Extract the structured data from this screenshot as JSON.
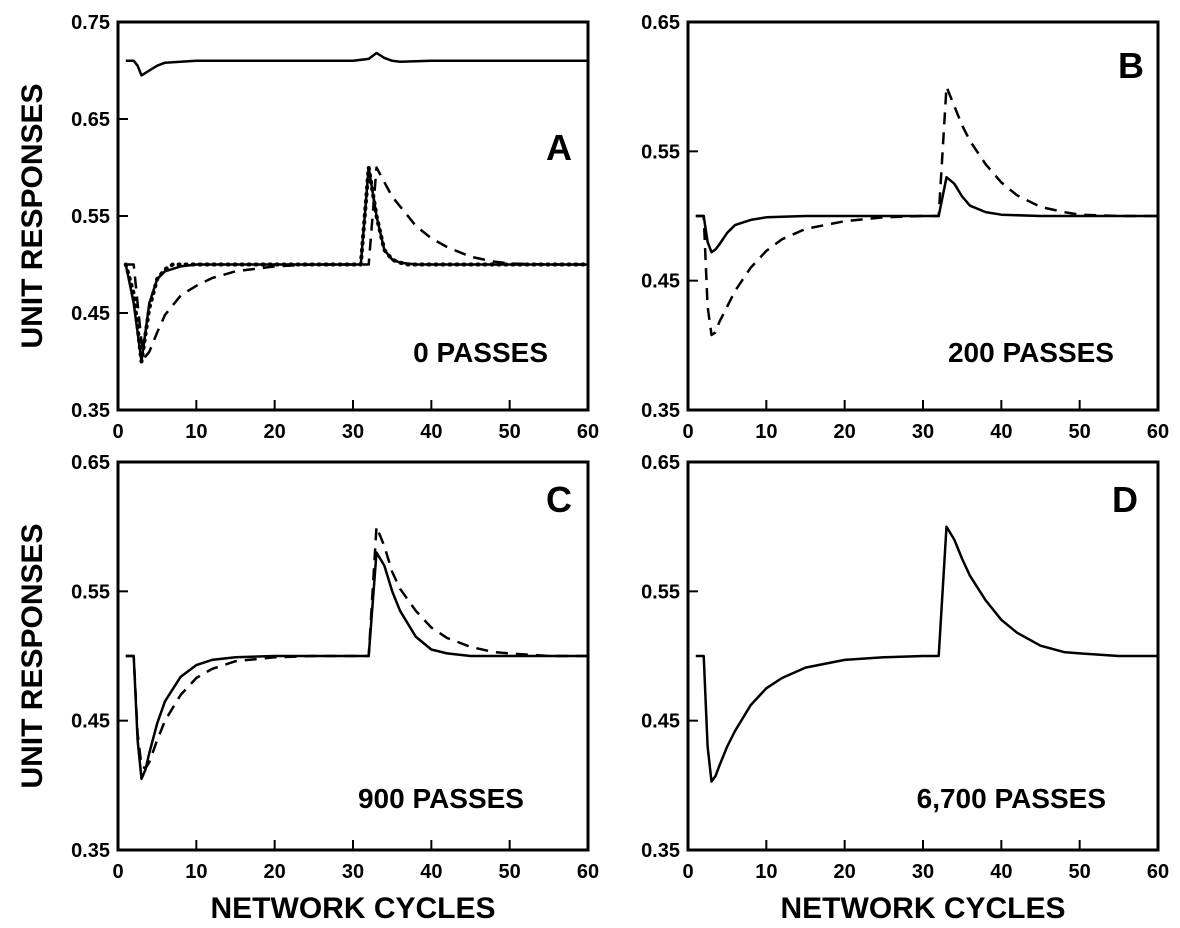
{
  "figure": {
    "ylabel_top": "UNIT RESPONSES",
    "ylabel_bottom": "UNIT RESPONSES",
    "xlabel_left": "NETWORK CYCLES",
    "xlabel_right": "NETWORK CYCLES"
  },
  "chart_data": [
    {
      "type": "line",
      "panel": "A",
      "letter": "A",
      "passes_label": "0 PASSES",
      "xlim": [
        0,
        60
      ],
      "ylim": [
        0.35,
        0.75
      ],
      "xticks": [
        0,
        10,
        20,
        30,
        40,
        50,
        60
      ],
      "xtick_labels": [
        "0",
        "10",
        "20",
        "30",
        "40",
        "50",
        "60"
      ],
      "yticks": [
        0.35,
        0.45,
        0.55,
        0.65,
        0.75
      ],
      "ytick_labels": [
        "0.35",
        "0.45",
        "0.55",
        "0.65",
        "0.75"
      ],
      "series": [
        {
          "style": "solid",
          "x": [
            1,
            2,
            2.5,
            3,
            4,
            5,
            6,
            8,
            10,
            20,
            30,
            32,
            33,
            34,
            35,
            36,
            40,
            50,
            60
          ],
          "y": [
            0.71,
            0.71,
            0.705,
            0.695,
            0.7,
            0.705,
            0.708,
            0.709,
            0.71,
            0.71,
            0.71,
            0.712,
            0.718,
            0.713,
            0.71,
            0.709,
            0.71,
            0.71,
            0.71
          ]
        },
        {
          "style": "solid",
          "x": [
            1,
            2,
            3,
            4,
            5,
            6,
            8,
            10,
            15,
            20,
            30,
            31,
            32,
            33,
            34,
            35,
            36,
            38,
            40,
            50,
            60
          ],
          "y": [
            0.5,
            0.46,
            0.4,
            0.46,
            0.485,
            0.493,
            0.498,
            0.5,
            0.5,
            0.5,
            0.5,
            0.5,
            0.6,
            0.55,
            0.515,
            0.505,
            0.502,
            0.5,
            0.5,
            0.5,
            0.5
          ]
        },
        {
          "style": "dotted",
          "x": [
            1,
            2,
            3,
            4,
            5,
            6,
            7,
            8,
            9,
            10,
            12,
            14,
            16,
            18,
            20,
            22,
            24,
            26,
            28,
            30,
            31,
            32,
            33,
            34,
            35,
            36,
            37,
            38,
            40,
            42,
            44,
            46,
            48,
            50,
            52,
            54,
            56,
            58,
            60
          ],
          "y": [
            0.5,
            0.47,
            0.4,
            0.455,
            0.485,
            0.495,
            0.5,
            0.5,
            0.5,
            0.5,
            0.5,
            0.5,
            0.5,
            0.5,
            0.5,
            0.5,
            0.5,
            0.5,
            0.5,
            0.5,
            0.5,
            0.6,
            0.55,
            0.515,
            0.505,
            0.502,
            0.5,
            0.5,
            0.5,
            0.5,
            0.5,
            0.5,
            0.5,
            0.5,
            0.5,
            0.5,
            0.5,
            0.5,
            0.5
          ]
        },
        {
          "style": "dashed",
          "x": [
            1,
            2,
            3,
            3.5,
            4,
            5,
            6,
            8,
            10,
            12,
            15,
            20,
            25,
            30,
            32,
            33,
            34,
            35,
            36,
            38,
            40,
            42,
            45,
            48,
            50,
            55,
            60
          ],
          "y": [
            0.5,
            0.5,
            0.42,
            0.405,
            0.41,
            0.43,
            0.448,
            0.468,
            0.478,
            0.486,
            0.493,
            0.498,
            0.5,
            0.5,
            0.5,
            0.6,
            0.585,
            0.57,
            0.56,
            0.54,
            0.527,
            0.518,
            0.508,
            0.503,
            0.501,
            0.5,
            0.5
          ]
        }
      ]
    },
    {
      "type": "line",
      "panel": "B",
      "letter": "B",
      "passes_label": "200 PASSES",
      "xlim": [
        0,
        60
      ],
      "ylim": [
        0.35,
        0.65
      ],
      "xticks": [
        0,
        10,
        20,
        30,
        40,
        50,
        60
      ],
      "xtick_labels": [
        "0",
        "10",
        "20",
        "30",
        "40",
        "50",
        "60"
      ],
      "yticks": [
        0.35,
        0.45,
        0.55,
        0.65
      ],
      "ytick_labels": [
        "0.35",
        "0.45",
        "0.55",
        "0.65"
      ],
      "series": [
        {
          "style": "solid",
          "x": [
            1,
            2,
            2.5,
            3,
            3.5,
            4,
            5,
            6,
            8,
            10,
            15,
            20,
            30,
            32,
            33,
            34,
            35,
            36,
            38,
            40,
            45,
            50,
            60
          ],
          "y": [
            0.5,
            0.5,
            0.48,
            0.472,
            0.474,
            0.478,
            0.487,
            0.493,
            0.497,
            0.499,
            0.5,
            0.5,
            0.5,
            0.5,
            0.53,
            0.525,
            0.515,
            0.508,
            0.503,
            0.501,
            0.5,
            0.5,
            0.5
          ]
        },
        {
          "style": "dashed",
          "x": [
            1,
            2,
            2.5,
            3,
            3.5,
            4,
            5,
            6,
            8,
            10,
            12,
            15,
            20,
            25,
            30,
            32,
            33,
            34,
            35,
            36,
            38,
            40,
            42,
            45,
            48,
            50,
            55,
            60
          ],
          "y": [
            0.5,
            0.5,
            0.43,
            0.408,
            0.41,
            0.418,
            0.43,
            0.442,
            0.46,
            0.473,
            0.482,
            0.49,
            0.496,
            0.499,
            0.5,
            0.5,
            0.6,
            0.585,
            0.57,
            0.558,
            0.54,
            0.526,
            0.516,
            0.507,
            0.503,
            0.501,
            0.5,
            0.5
          ]
        }
      ]
    },
    {
      "type": "line",
      "panel": "C",
      "letter": "C",
      "passes_label": "900 PASSES",
      "xlim": [
        0,
        60
      ],
      "ylim": [
        0.35,
        0.65
      ],
      "xticks": [
        0,
        10,
        20,
        30,
        40,
        50,
        60
      ],
      "xtick_labels": [
        "0",
        "10",
        "20",
        "30",
        "40",
        "50",
        "60"
      ],
      "yticks": [
        0.35,
        0.45,
        0.55,
        0.65
      ],
      "ytick_labels": [
        "0.35",
        "0.45",
        "0.55",
        "0.65"
      ],
      "series": [
        {
          "style": "solid",
          "x": [
            1,
            2,
            2.5,
            3,
            3.5,
            4,
            5,
            6,
            8,
            10,
            12,
            15,
            20,
            30,
            32,
            33,
            34,
            35,
            36,
            38,
            40,
            42,
            45,
            50,
            60
          ],
          "y": [
            0.5,
            0.5,
            0.435,
            0.405,
            0.412,
            0.425,
            0.448,
            0.465,
            0.484,
            0.493,
            0.497,
            0.499,
            0.5,
            0.5,
            0.5,
            0.58,
            0.57,
            0.55,
            0.535,
            0.515,
            0.505,
            0.502,
            0.5,
            0.5,
            0.5
          ]
        },
        {
          "style": "dashed",
          "x": [
            1,
            2,
            2.5,
            3,
            3.5,
            4,
            5,
            6,
            8,
            10,
            12,
            15,
            20,
            25,
            30,
            32,
            33,
            34,
            35,
            36,
            38,
            40,
            42,
            45,
            48,
            50,
            55,
            60
          ],
          "y": [
            0.5,
            0.5,
            0.44,
            0.415,
            0.413,
            0.418,
            0.435,
            0.45,
            0.47,
            0.483,
            0.49,
            0.496,
            0.499,
            0.5,
            0.5,
            0.5,
            0.6,
            0.585,
            0.565,
            0.552,
            0.535,
            0.522,
            0.514,
            0.507,
            0.503,
            0.502,
            0.5,
            0.5
          ]
        }
      ]
    },
    {
      "type": "line",
      "panel": "D",
      "letter": "D",
      "passes_label": "6,700 PASSES",
      "xlim": [
        0,
        60
      ],
      "ylim": [
        0.35,
        0.65
      ],
      "xticks": [
        0,
        10,
        20,
        30,
        40,
        50,
        60
      ],
      "xtick_labels": [
        "0",
        "10",
        "20",
        "30",
        "40",
        "50",
        "60"
      ],
      "yticks": [
        0.35,
        0.45,
        0.55,
        0.65
      ],
      "ytick_labels": [
        "0.35",
        "0.45",
        "0.55",
        "0.65"
      ],
      "series": [
        {
          "style": "solid",
          "x": [
            1,
            2,
            2.5,
            3,
            3.5,
            4,
            5,
            6,
            8,
            10,
            12,
            15,
            20,
            25,
            30,
            32,
            33,
            34,
            35,
            36,
            38,
            40,
            42,
            45,
            48,
            50,
            55,
            60
          ],
          "y": [
            0.5,
            0.5,
            0.43,
            0.403,
            0.407,
            0.415,
            0.43,
            0.442,
            0.462,
            0.475,
            0.483,
            0.491,
            0.497,
            0.499,
            0.5,
            0.5,
            0.6,
            0.59,
            0.575,
            0.562,
            0.543,
            0.528,
            0.518,
            0.508,
            0.503,
            0.502,
            0.5,
            0.5
          ]
        }
      ]
    }
  ]
}
